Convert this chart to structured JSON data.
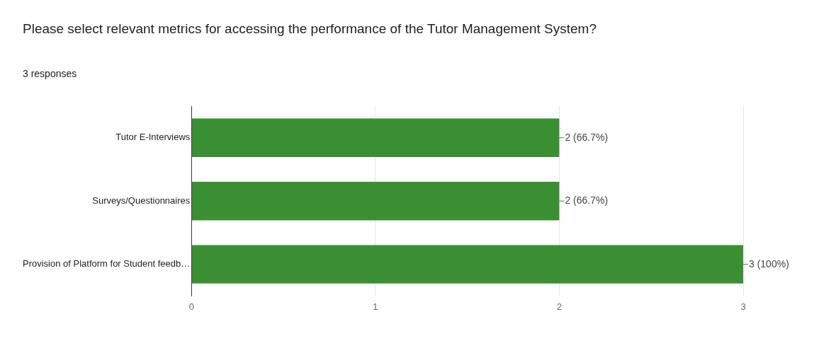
{
  "chart_data": {
    "type": "bar",
    "orientation": "horizontal",
    "title": "Please select relevant metrics for accessing the performance of the Tutor Management System?",
    "subtitle": "3 responses",
    "categories": [
      "Tutor E-Interviews",
      "Surveys/Questionnaires",
      "Provision of Platform for Student feedb…"
    ],
    "values": [
      2,
      2,
      3
    ],
    "value_labels": [
      "2 (66.7%)",
      "2 (66.7%)",
      "3 (100%)"
    ],
    "color": "#3b8f33",
    "xlim": [
      0,
      3
    ],
    "xticks": [
      0,
      1,
      2,
      3
    ],
    "grid": "x",
    "legend": false
  }
}
